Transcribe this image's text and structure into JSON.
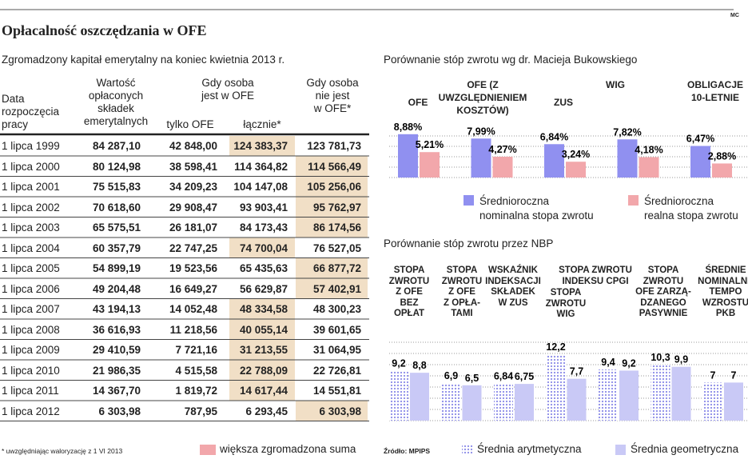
{
  "header": {
    "title": "Opłacalność oszczędzania w OFE",
    "logo": "MC"
  },
  "table": {
    "title": "Zgromadzony kapitał emerytalny na koniec kwietnia 2013 r.",
    "group_header": "Gdy osoba\njest w OFE",
    "columns": [
      "Data\nrozpoczęcia\npracy",
      "Wartość\nopłaconych\nskładek\nemerytalnych",
      "tylko OFE",
      "łącznie*",
      "Gdy osoba\nnie jest\nw OFE*"
    ],
    "rows": [
      [
        "1 lipca 1999",
        "84 287,10",
        "42 848,00",
        "124 383,37",
        "123 781,73"
      ],
      [
        "1 lipca 2000",
        "80 124,98",
        "38 598,41",
        "114 364,82",
        "114 566,49"
      ],
      [
        "1 lipca 2001",
        "75 515,83",
        "34 209,23",
        "104 147,08",
        "105 256,06"
      ],
      [
        "1 lipca 2002",
        "70 618,60",
        "29 908,47",
        "93 903,41",
        "95 762,97"
      ],
      [
        "1 lipca 2003",
        "65 575,51",
        "26 181,07",
        "84 173,43",
        "86 174,56"
      ],
      [
        "1 lipca 2004",
        "60 357,79",
        "22 747,25",
        "74 700,04",
        "76 527,05"
      ],
      [
        "1 lipca 2005",
        "54 899,19",
        "19 523,56",
        "65 435,63",
        "66 877,72"
      ],
      [
        "1 lipca 2006",
        "49 204,48",
        "16 649,27",
        "56 629,87",
        "57 402,91"
      ],
      [
        "1 lipca 2007",
        "43 194,13",
        "14 052,48",
        "48 334,58",
        "48 300,23"
      ],
      [
        "1 lipca 2008",
        "36 616,93",
        "11 218,56",
        "40 055,14",
        "39 601,65"
      ],
      [
        "1 lipca 2009",
        "29 410,59",
        "7 721,16",
        "31 213,55",
        "31 064,95"
      ],
      [
        "1 lipca 2010",
        "21 986,35",
        "4 515,58",
        "22 788,09",
        "22 726,81"
      ],
      [
        "1 lipca 2011",
        "14 367,70",
        "1 819,72",
        "14 617,44",
        "14 551,81"
      ],
      [
        "1 lipca 2012",
        "6 303,98",
        "787,95",
        "6 293,45",
        "6 303,98"
      ]
    ],
    "highlight": [
      3,
      4,
      4,
      4,
      4,
      3,
      4,
      4,
      3,
      3,
      3,
      3,
      3,
      4
    ],
    "highlight_color": "#f1dfc6"
  },
  "footer": {
    "note": "* uwzględniając waloryzację z 1 VI 2013",
    "legend": "większa zgromadzona suma",
    "legend_color": "#f2a7ab",
    "source": "Źródło: MPIPS"
  },
  "chart_data": [
    {
      "type": "bar",
      "title": "Porównanie stóp zwrotu wg dr. Macieja Bukowskiego",
      "categories": [
        "OFE",
        "OFE (Z UWZGLĘDNIENIEM\nKOSZTÓW)",
        "ZUS",
        "WIG",
        "OBLIGACJE\n10-LETNIE"
      ],
      "series": [
        {
          "name": "Średnioroczna\nnominalna stopa zwrotu",
          "color": "#9090f0",
          "values": [
            8.88,
            7.99,
            6.84,
            7.82,
            6.47
          ],
          "value_labels": [
            "8,88%",
            "7,99%",
            "6,84%",
            "7,82%",
            "6,47%"
          ]
        },
        {
          "name": "Średnioroczna\nrealna stopa zwrotu",
          "color": "#f2a7ab",
          "values": [
            5.21,
            4.27,
            3.24,
            4.18,
            2.88
          ],
          "value_labels": [
            "5,21%",
            "4,27%",
            "3,24%",
            "4,18%",
            "2,88%"
          ]
        }
      ],
      "grid": true
    },
    {
      "type": "bar",
      "title": "Porównanie stóp zwrotu przez NBP",
      "categories": [
        "STOPA\nZWROTU\nZ OFE\nBEZ\nOPŁAT",
        "STOPA\nZWROTU\nZ OFE\nZ OPŁA-\nTAMI",
        "WSKAŹNIK\nINDEKSACJI\nSKŁADEK\nW ZUS",
        "STOPA\nZWROTU\nWIG",
        "STOPA ZWROTU\nINDEKSU CPGI",
        "STOPA\nZWROTU\nOFE ZARZĄ-\nDZANEGO\nPASYWNIE",
        "ŚREDNIE\nNOMINALNE\nTEMPO\nWZROSTU\nPKB"
      ],
      "series": [
        {
          "name": "Średnia arytmetyczna",
          "color": "#c9c9f6",
          "pattern": "dots",
          "values": [
            9.2,
            6.9,
            6.84,
            12.2,
            9.4,
            10.3,
            7
          ],
          "value_labels": [
            "9,2",
            "6,9",
            "6,84",
            "12,2",
            "9,4",
            "10,3",
            "7"
          ]
        },
        {
          "name": "Średnia geometryczna",
          "color": "#c9c9f6",
          "values": [
            8.8,
            6.5,
            6.75,
            7.7,
            9.2,
            9.9,
            7
          ],
          "value_labels": [
            "8,8",
            "6,5",
            "6,75",
            "7,7",
            "9,2",
            "9,9",
            "7"
          ]
        }
      ],
      "grid": true
    }
  ]
}
